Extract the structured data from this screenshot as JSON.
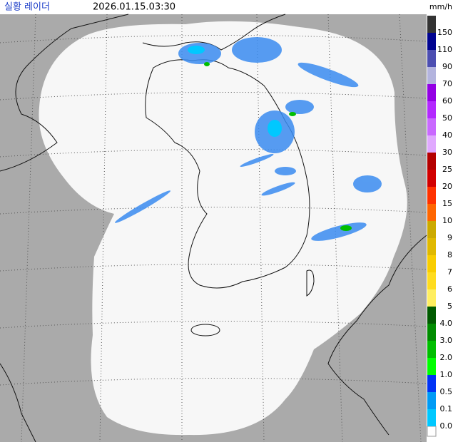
{
  "header": {
    "title": "실황 레이더",
    "time": "2026.01.15.03:30"
  },
  "legend": {
    "unit": "mm/h",
    "items": [
      {
        "label": "150",
        "color": "#333333"
      },
      {
        "label": "110",
        "color": "#000390"
      },
      {
        "label": "90",
        "color": "#4c4eb1"
      },
      {
        "label": "70",
        "color": "#b3b4de"
      },
      {
        "label": "60",
        "color": "#9300e4"
      },
      {
        "label": "50",
        "color": "#b329ff"
      },
      {
        "label": "40",
        "color": "#c969ff"
      },
      {
        "label": "30",
        "color": "#e0a9ff"
      },
      {
        "label": "25",
        "color": "#b40000"
      },
      {
        "label": "20",
        "color": "#d20000"
      },
      {
        "label": "15",
        "color": "#ff3200"
      },
      {
        "label": "10",
        "color": "#ff6600"
      },
      {
        "label": "9",
        "color": "#ccaa00"
      },
      {
        "label": "8",
        "color": "#e0b900"
      },
      {
        "label": "7",
        "color": "#f9cd00"
      },
      {
        "label": "6",
        "color": "#ffdc1f"
      },
      {
        "label": "5",
        "color": "#ffee60"
      },
      {
        "label": "4.0",
        "color": "#005a00"
      },
      {
        "label": "3.0",
        "color": "#008c00"
      },
      {
        "label": "2.0",
        "color": "#00be00"
      },
      {
        "label": "1.0",
        "color": "#00ff00"
      },
      {
        "label": "0.5",
        "color": "#0033f5"
      },
      {
        "label": "0.1",
        "color": "#009bf5"
      },
      {
        "label": "0.0",
        "color": "#00c8ff"
      }
    ]
  }
}
